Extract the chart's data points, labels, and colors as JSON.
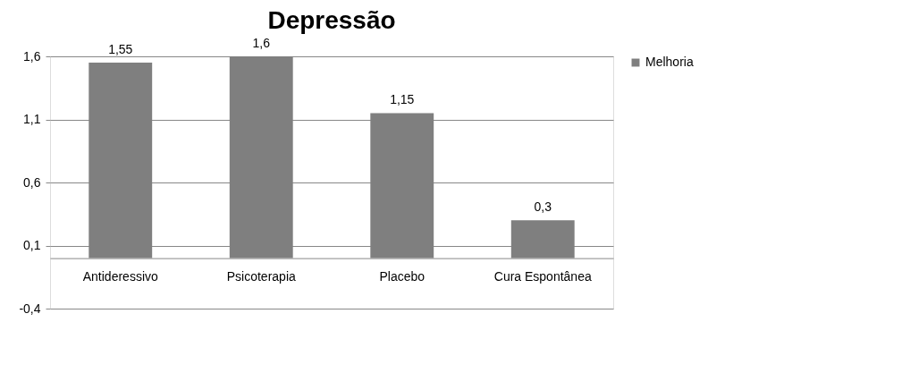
{
  "chart_data": {
    "type": "bar",
    "title": "Depressão",
    "categories": [
      "Antideressivo",
      "Psicoterapia",
      "Placebo",
      "Cura Espontânea"
    ],
    "series": [
      {
        "name": "Melhoria",
        "color": "#7f7f7f",
        "values": [
          1.55,
          1.6,
          1.15,
          0.3
        ],
        "value_labels": [
          "1,55",
          "1,6",
          "1,15",
          "0,3"
        ]
      }
    ],
    "ylim": [
      -0.4,
      1.6
    ],
    "yticks": [
      {
        "value": -0.4,
        "label": "-0,4"
      },
      {
        "value": 0.1,
        "label": "0,1"
      },
      {
        "value": 0.6,
        "label": "0,6"
      },
      {
        "value": 1.1,
        "label": "1,1"
      },
      {
        "value": 1.6,
        "label": "1,6"
      }
    ],
    "grid": "y",
    "legend": "right"
  }
}
